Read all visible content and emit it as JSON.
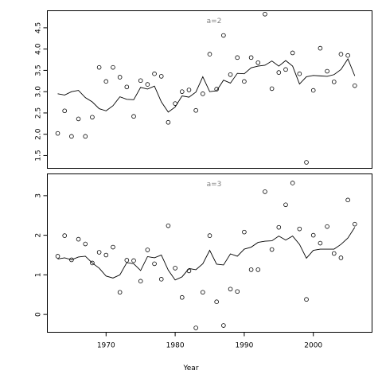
{
  "chart_data": {
    "type": "scatter",
    "xlabel": "Year",
    "x_ticks": [
      1970,
      1980,
      1990,
      2000
    ],
    "xlim": [
      1961.5,
      2008.5
    ],
    "panels": [
      {
        "label": "a=2",
        "ylim": [
          1.2,
          4.9
        ],
        "y_ticks": [
          1.5,
          2.0,
          2.5,
          3.0,
          3.5,
          4.0,
          4.5
        ],
        "y_tick_labels": [
          "1.5",
          "2.0",
          "2.5",
          "3.0",
          "3.5",
          "4.0",
          "4.5"
        ],
        "series": [
          {
            "type": "scatter",
            "x": [
              1963,
              1964,
              1965,
              1966,
              1967,
              1968,
              1969,
              1970,
              1971,
              1972,
              1973,
              1974,
              1975,
              1976,
              1977,
              1978,
              1979,
              1980,
              1981,
              1982,
              1983,
              1984,
              1985,
              1986,
              1987,
              1988,
              1989,
              1990,
              1991,
              1992,
              1993,
              1994,
              1995,
              1996,
              1997,
              1998,
              1999,
              2000,
              2001,
              2002,
              2003,
              2004,
              2005,
              2006
            ],
            "y": [
              2.02,
              2.55,
              1.95,
              2.36,
              1.95,
              2.4,
              3.57,
              3.24,
              3.57,
              3.34,
              3.11,
              2.42,
              3.26,
              3.17,
              3.42,
              3.36,
              2.28,
              2.72,
              3.0,
              3.04,
              2.56,
              2.95,
              3.88,
              3.06,
              4.32,
              3.4,
              3.8,
              3.24,
              3.8,
              3.68,
              4.82,
              3.07,
              3.45,
              3.52,
              3.91,
              3.42,
              1.34,
              3.03,
              4.02,
              3.48,
              3.23,
              3.88,
              3.85,
              3.14
            ]
          },
          {
            "type": "line",
            "x": [
              1963,
              1964,
              1965,
              1966,
              1967,
              1968,
              1969,
              1970,
              1971,
              1972,
              1973,
              1974,
              1975,
              1976,
              1977,
              1978,
              1979,
              1980,
              1981,
              1982,
              1983,
              1984,
              1985,
              1986,
              1987,
              1988,
              1989,
              1990,
              1991,
              1992,
              1993,
              1994,
              1995,
              1996,
              1997,
              1998,
              1999,
              2000,
              2001,
              2002,
              2003,
              2004,
              2005,
              2006
            ],
            "y": [
              2.95,
              2.92,
              3.0,
              3.03,
              2.86,
              2.76,
              2.6,
              2.55,
              2.67,
              2.88,
              2.82,
              2.81,
              3.1,
              3.06,
              3.13,
              2.76,
              2.52,
              2.64,
              2.9,
              2.87,
              2.99,
              3.35,
              3.0,
              3.02,
              3.27,
              3.2,
              3.43,
              3.42,
              3.56,
              3.6,
              3.62,
              3.72,
              3.6,
              3.73,
              3.6,
              3.18,
              3.35,
              3.38,
              3.37,
              3.36,
              3.4,
              3.52,
              3.77,
              3.37
            ]
          }
        ]
      },
      {
        "label": "a=3",
        "ylim": [
          -0.45,
          3.55
        ],
        "y_ticks": [
          0,
          1,
          2,
          3
        ],
        "y_tick_labels": [
          "0",
          "1",
          "2",
          "3"
        ],
        "series": [
          {
            "type": "scatter",
            "x": [
              1963,
              1964,
              1965,
              1966,
              1967,
              1968,
              1969,
              1970,
              1971,
              1972,
              1973,
              1974,
              1975,
              1976,
              1977,
              1978,
              1979,
              1980,
              1981,
              1982,
              1983,
              1984,
              1985,
              1986,
              1987,
              1988,
              1989,
              1990,
              1991,
              1992,
              1993,
              1994,
              1995,
              1996,
              1997,
              1998,
              1999,
              2000,
              2001,
              2002,
              2003,
              2004,
              2005,
              2006
            ],
            "y": [
              1.47,
              1.99,
              1.38,
              1.9,
              1.78,
              1.3,
              1.57,
              1.5,
              1.7,
              0.56,
              1.37,
              1.36,
              0.84,
              1.63,
              1.28,
              0.89,
              2.24,
              1.17,
              0.43,
              1.1,
              -0.34,
              0.56,
              1.99,
              0.32,
              -0.28,
              0.64,
              0.58,
              2.08,
              1.13,
              1.13,
              3.1,
              1.64,
              2.2,
              2.77,
              3.32,
              2.16,
              0.38,
              2.0,
              1.8,
              2.22,
              1.54,
              1.43,
              2.89,
              2.28
            ]
          },
          {
            "type": "line",
            "x": [
              1963,
              1964,
              1965,
              1966,
              1967,
              1968,
              1969,
              1970,
              1971,
              1972,
              1973,
              1974,
              1975,
              1976,
              1977,
              1978,
              1979,
              1980,
              1981,
              1982,
              1983,
              1984,
              1985,
              1986,
              1987,
              1988,
              1989,
              1990,
              1991,
              1992,
              1993,
              1994,
              1995,
              1996,
              1997,
              1998,
              1999,
              2000,
              2001,
              2002,
              2003,
              2004,
              2005,
              2006
            ],
            "y": [
              1.4,
              1.43,
              1.38,
              1.45,
              1.47,
              1.3,
              1.17,
              0.97,
              0.92,
              1.0,
              1.31,
              1.28,
              1.11,
              1.46,
              1.43,
              1.5,
              1.12,
              0.87,
              0.95,
              1.16,
              1.13,
              1.28,
              1.62,
              1.27,
              1.25,
              1.53,
              1.47,
              1.65,
              1.7,
              1.82,
              1.85,
              1.86,
              1.98,
              1.88,
              1.98,
              1.77,
              1.42,
              1.62,
              1.65,
              1.65,
              1.65,
              1.77,
              1.93,
              2.2
            ]
          }
        ]
      }
    ]
  }
}
